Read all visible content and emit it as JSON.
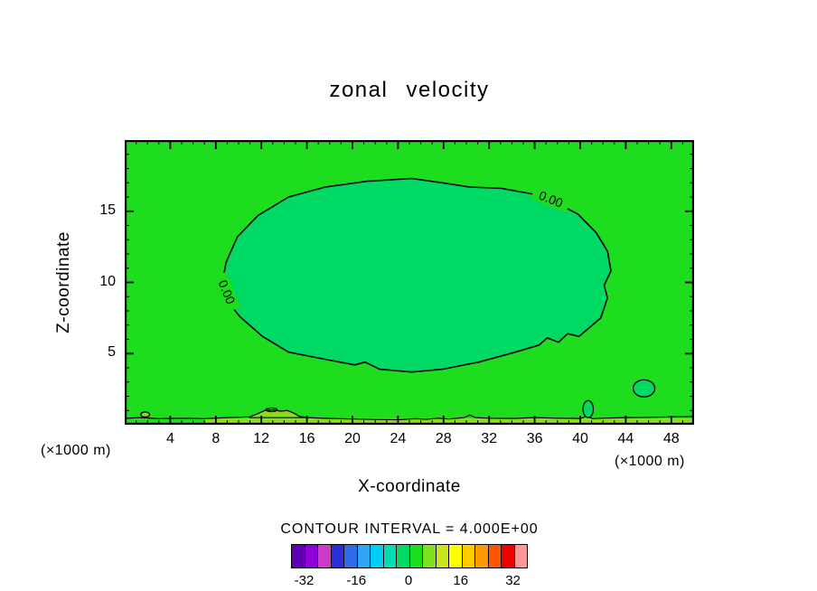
{
  "title": "zonal velocity",
  "axes": {
    "x": {
      "label": "X-coordinate",
      "ticks": [
        "4",
        "8",
        "12",
        "16",
        "20",
        "24",
        "28",
        "32",
        "36",
        "40",
        "44",
        "48"
      ]
    },
    "y": {
      "label": "Z-coordinate",
      "ticks": [
        "5",
        "10",
        "15"
      ]
    }
  },
  "units": {
    "left": "(×1000 m)",
    "right": "(×1000 m)"
  },
  "contour_interval_text": "CONTOUR INTERVAL = 4.000E+00",
  "colors": {
    "field_outer": "#1edc1e",
    "field_inner": "#00d964",
    "field_band": "#8cdc1e",
    "contour_line": "#000000",
    "background": "#ffffff"
  },
  "chart_data": {
    "type": "contour",
    "title": "zonal velocity",
    "xlabel": "X-coordinate (×1000 m)",
    "ylabel": "Z-coordinate (×1000 m)",
    "xlim": [
      0,
      50
    ],
    "ylim": [
      0,
      20
    ],
    "x_ticks": [
      4,
      8,
      12,
      16,
      20,
      24,
      28,
      32,
      36,
      40,
      44,
      48
    ],
    "y_ticks": [
      5,
      10,
      15
    ],
    "contour_interval": 4.0,
    "labeled_level": 0.0,
    "zero_contour": [
      [
        8.5,
        9.6
      ],
      [
        8.9,
        11.4
      ],
      [
        9.9,
        13.2
      ],
      [
        11.7,
        14.7
      ],
      [
        14.4,
        16.0
      ],
      [
        17.6,
        16.7
      ],
      [
        21.2,
        17.1
      ],
      [
        25.2,
        17.3
      ],
      [
        27.9,
        17.0
      ],
      [
        30.3,
        16.7
      ],
      [
        33.1,
        16.6
      ],
      [
        35.9,
        16.2
      ],
      [
        37.6,
        15.7
      ],
      [
        39.8,
        14.8
      ],
      [
        41.4,
        13.5
      ],
      [
        42.4,
        12.2
      ],
      [
        42.7,
        10.8
      ],
      [
        42.1,
        9.8
      ],
      [
        42.4,
        8.9
      ],
      [
        41.8,
        7.5
      ],
      [
        39.9,
        6.2
      ],
      [
        38.9,
        6.4
      ],
      [
        38.1,
        5.8
      ],
      [
        37.1,
        6.1
      ],
      [
        36.4,
        5.6
      ],
      [
        34.3,
        5.1
      ],
      [
        31.1,
        4.4
      ],
      [
        27.9,
        3.9
      ],
      [
        25.2,
        3.7
      ],
      [
        22.4,
        3.9
      ],
      [
        21.1,
        4.4
      ],
      [
        20.2,
        4.2
      ],
      [
        17.6,
        4.6
      ],
      [
        14.4,
        5.1
      ],
      [
        12.1,
        6.2
      ],
      [
        10.1,
        7.6
      ],
      [
        9.1,
        8.6
      ]
    ],
    "surface_contour_line": [
      [
        0,
        0.45
      ],
      [
        1.5,
        0.5
      ],
      [
        3,
        0.42
      ],
      [
        5,
        0.46
      ],
      [
        7,
        0.42
      ],
      [
        9,
        0.5
      ],
      [
        11,
        0.55
      ],
      [
        11.6,
        0.75
      ],
      [
        12.3,
        1.0
      ],
      [
        13,
        1.05
      ],
      [
        13.7,
        0.95
      ],
      [
        14.3,
        1.0
      ],
      [
        14.9,
        0.8
      ],
      [
        15.3,
        0.6
      ],
      [
        16,
        0.5
      ],
      [
        18,
        0.44
      ],
      [
        20,
        0.4
      ],
      [
        22,
        0.37
      ],
      [
        24,
        0.35
      ],
      [
        25.5,
        0.42
      ],
      [
        26.5,
        0.38
      ],
      [
        27.5,
        0.46
      ],
      [
        28.5,
        0.4
      ],
      [
        29.8,
        0.5
      ],
      [
        30.3,
        0.68
      ],
      [
        30.8,
        0.5
      ],
      [
        32,
        0.46
      ],
      [
        34,
        0.44
      ],
      [
        36,
        0.5
      ],
      [
        38,
        0.46
      ],
      [
        40,
        0.44
      ],
      [
        40.6,
        0.6
      ],
      [
        41.1,
        0.42
      ],
      [
        42,
        0.46
      ],
      [
        44,
        0.5
      ],
      [
        46,
        0.52
      ],
      [
        48,
        0.55
      ],
      [
        50,
        0.58
      ]
    ],
    "surface_band": {
      "x_start": 7,
      "x_end": 50,
      "z_bottom": 0.06,
      "z_top": 0.46
    },
    "surface_patch": [
      [
        11,
        0.55
      ],
      [
        11.6,
        0.75
      ],
      [
        12.3,
        1.0
      ],
      [
        13,
        1.05
      ],
      [
        13.7,
        0.95
      ],
      [
        14.3,
        1.0
      ],
      [
        14.9,
        0.8
      ],
      [
        15.3,
        0.6
      ],
      [
        16,
        0.5
      ],
      [
        11,
        0.5
      ]
    ],
    "small_closed_contours": [
      {
        "cx": 40.7,
        "cy": 1.1,
        "rx": 0.45,
        "ry": 0.6,
        "fill": "inner"
      },
      {
        "cx": 45.6,
        "cy": 2.55,
        "rx": 0.95,
        "ry": 0.6,
        "fill": "inner"
      },
      {
        "cx": 1.8,
        "cy": 0.72,
        "rx": 0.38,
        "ry": 0.18,
        "fill": "band"
      },
      {
        "cx": 12.9,
        "cy": 1.05,
        "rx": 0.5,
        "ry": 0.13,
        "fill": "none"
      }
    ],
    "contour_labels": [
      {
        "text": "0.00",
        "x": 37.4,
        "z": 15.8,
        "rotation": 22
      },
      {
        "text": "0.00",
        "x": 8.9,
        "z": 9.3,
        "rotation": 68
      }
    ],
    "colorbar": {
      "min": -36,
      "max": 36,
      "interval": 4,
      "tick_values": [
        -32,
        -16,
        0,
        16,
        32
      ],
      "tick_labels": [
        "-32",
        "-16",
        "0",
        "16",
        "32"
      ],
      "colors": [
        "#5f00b4",
        "#9000d8",
        "#cb3ccb",
        "#2e2ed8",
        "#2e6ce6",
        "#2ea6f2",
        "#00cdf0",
        "#00dcb4",
        "#00d964",
        "#1edc1e",
        "#80e01e",
        "#c8e61e",
        "#ffff00",
        "#ffcc00",
        "#ff9900",
        "#ff5500",
        "#ee0000",
        "#ff9999"
      ]
    }
  }
}
